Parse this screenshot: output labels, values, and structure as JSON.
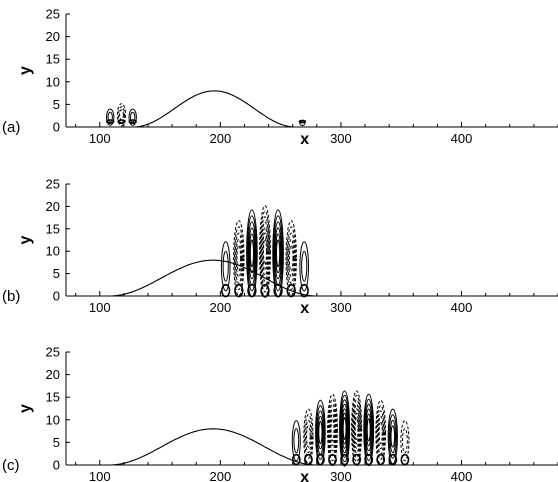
{
  "chart_data": [
    {
      "type": "contour",
      "panel_label": "(a)",
      "xlabel": "x",
      "ylabel": "y",
      "xlim": [
        72,
        480
      ],
      "ylim": [
        0,
        25
      ],
      "x_ticks": [
        100,
        200,
        300,
        400
      ],
      "y_ticks": [
        0,
        5,
        10,
        15,
        20,
        25
      ],
      "hump_curve": {
        "x_start": 128,
        "x_peak": 194,
        "x_end": 262,
        "y_peak": 8
      },
      "contour_packets": [
        {
          "x_center": 118,
          "x_half_width": 14,
          "y_top": 6,
          "cells": 3,
          "max_levels": 3
        },
        {
          "x_center": 268,
          "x_half_width": 4,
          "y_top": 2,
          "cells": 1,
          "max_levels": 1
        }
      ]
    },
    {
      "type": "contour",
      "panel_label": "(b)",
      "xlabel": "x",
      "ylabel": "y",
      "xlim": [
        72,
        480
      ],
      "ylim": [
        0,
        25
      ],
      "x_ticks": [
        100,
        200,
        300,
        400
      ],
      "y_ticks": [
        0,
        5,
        10,
        15,
        20,
        25
      ],
      "hump_curve": {
        "x_start": 108,
        "x_peak": 194,
        "x_end": 280,
        "y_peak": 8
      },
      "contour_packets": [
        {
          "x_center": 237,
          "x_half_width": 38,
          "y_top": 22,
          "cells": 7,
          "max_levels": 7
        }
      ]
    },
    {
      "type": "contour",
      "panel_label": "(c)",
      "xlabel": "x",
      "ylabel": "y",
      "xlim": [
        72,
        480
      ],
      "ylim": [
        0,
        25
      ],
      "x_ticks": [
        100,
        200,
        300,
        400
      ],
      "y_ticks": [
        0,
        5,
        10,
        15,
        20,
        25
      ],
      "hump_curve": {
        "x_start": 108,
        "x_peak": 194,
        "x_end": 280,
        "y_peak": 8
      },
      "contour_packets": [
        {
          "x_center": 308,
          "x_half_width": 50,
          "y_top": 18,
          "cells": 10,
          "max_levels": 7
        }
      ]
    }
  ]
}
